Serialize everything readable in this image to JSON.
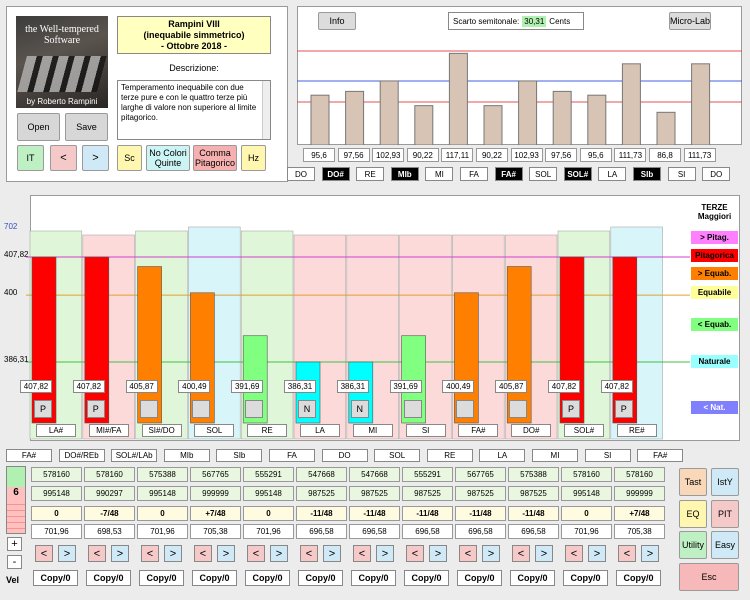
{
  "logo": {
    "line1": "the Well-tempered",
    "line2": "Software",
    "byline": "by Roberto Rampini"
  },
  "title": {
    "line1": "Rampini VIII",
    "line2": "(inequabile simmetrico)",
    "line3": "- Ottobre 2018 -"
  },
  "description": {
    "label": "Descrizione:",
    "text": "Temperamento inequabile con due terze pure e con le quattro terze più larghe di valore non superiore al limite pitagorico."
  },
  "buttons": {
    "open": "Open",
    "save": "Save",
    "it": "IT",
    "prev": "<",
    "next": ">",
    "sc": "Sc",
    "no_colori": "No Colori Quinte",
    "comma": "Comma Pitagorico",
    "hz": "Hz",
    "info": "Info",
    "microlab": "Micro-Lab"
  },
  "top_chart": {
    "scarto_label": "Scarto semitonale:",
    "scarto_value": "30,31",
    "scarto_unit": "Cents",
    "values": [
      "95,6",
      "97,56",
      "102,93",
      "90,22",
      "117,11",
      "90,22",
      "102,93",
      "97,56",
      "95,6",
      "111,73",
      "86,8",
      "111,73"
    ],
    "numeric": [
      95.6,
      97.56,
      102.93,
      90.22,
      117.11,
      90.22,
      102.93,
      97.56,
      95.6,
      111.73,
      86.8,
      111.73
    ],
    "notes": [
      {
        "n": "DO",
        "dark": false
      },
      {
        "n": "DO#",
        "dark": true
      },
      {
        "n": "RE",
        "dark": false
      },
      {
        "n": "MIb",
        "dark": true
      },
      {
        "n": "MI",
        "dark": false
      },
      {
        "n": "FA",
        "dark": false
      },
      {
        "n": "FA#",
        "dark": true
      },
      {
        "n": "SOL",
        "dark": false
      },
      {
        "n": "SOL#",
        "dark": true
      },
      {
        "n": "LA",
        "dark": false
      },
      {
        "n": "SIb",
        "dark": true
      },
      {
        "n": "SI",
        "dark": false
      },
      {
        "n": "DO",
        "dark": false
      }
    ]
  },
  "fifths_chart": {
    "y_labels": [
      "702",
      "407,82",
      "400",
      "386,31"
    ],
    "values": [
      "407,82",
      "407,82",
      "405,87",
      "400,49",
      "391,69",
      "386,31",
      "386,31",
      "391,69",
      "400,49",
      "405,87",
      "407,82",
      "407,82"
    ],
    "numeric": [
      407.82,
      407.82,
      405.87,
      400.49,
      391.69,
      386.31,
      386.31,
      391.69,
      400.49,
      405.87,
      407.82,
      407.82
    ],
    "bar_colors": [
      "#ff0000",
      "#ff0000",
      "#ff8000",
      "#ff8000",
      "#80ff80",
      "#00ffff",
      "#00ffff",
      "#80ff80",
      "#ff8000",
      "#ff8000",
      "#ff0000",
      "#ff0000"
    ],
    "bg_colors": [
      "#e0f6d8",
      "#fddada",
      "#e0f6d8",
      "#d8f6fa",
      "#e0f6d8",
      "#fddada",
      "#fddada",
      "#fddada",
      "#fddada",
      "#fddada",
      "#e0f6d8",
      "#d8f6fa"
    ],
    "bg_heights": [
      0.08,
      0.12,
      0.08,
      0.04,
      0.08,
      0.12,
      0.12,
      0.12,
      0.12,
      0.12,
      0.08,
      0.04
    ],
    "markers": [
      "P",
      "P",
      "",
      "",
      "",
      "N",
      "N",
      "",
      "",
      "",
      "P",
      "P"
    ],
    "notes": [
      "LA#",
      "MI#/FA",
      "SI#/DO",
      "SOL",
      "RE",
      "LA",
      "MI",
      "SI",
      "FA#",
      "DO#",
      "SOL#",
      "RE#"
    ]
  },
  "legend": [
    {
      "label": "TERZE Maggiori",
      "bg": "#ffffff",
      "color": "#000"
    },
    {
      "label": "> Pitag.",
      "bg": "#ff80ff",
      "color": "#000"
    },
    {
      "label": "Pitagorica",
      "bg": "#ff0000",
      "color": "#000"
    },
    {
      "label": "> Equab.",
      "bg": "#ff8000",
      "color": "#000"
    },
    {
      "label": "Equabile",
      "bg": "#ffff99",
      "color": "#000"
    },
    {
      "label": "< Equab.",
      "bg": "#80ff80",
      "color": "#000"
    },
    {
      "label": "Naturale",
      "bg": "#99ffff",
      "color": "#000"
    },
    {
      "label": "< Nat.",
      "bg": "#8080ff",
      "color": "#fff"
    }
  ],
  "bottom": {
    "notes": [
      "FA#",
      "DO#/REb",
      "SOL#/LAb",
      "MIb",
      "SIb",
      "FA",
      "DO",
      "SOL",
      "RE",
      "LA",
      "MI",
      "SI",
      "FA#"
    ],
    "row1": [
      "578160",
      "578160",
      "575388",
      "567765",
      "555291",
      "547668",
      "547668",
      "555291",
      "567765",
      "575388",
      "578160",
      "578160"
    ],
    "row2": [
      "995148",
      "990297",
      "995148",
      "999999",
      "995148",
      "987525",
      "987525",
      "987525",
      "987525",
      "987525",
      "995148",
      "999999"
    ],
    "row3": [
      "0",
      "-7/48",
      "0",
      "+7/48",
      "0",
      "-11/48",
      "-11/48",
      "-11/48",
      "-11/48",
      "-11/48",
      "0",
      "+7/48"
    ],
    "row4": [
      "701,96",
      "698,53",
      "701,96",
      "705,38",
      "701,96",
      "696,58",
      "696,58",
      "696,58",
      "696,58",
      "696,58",
      "701,96",
      "705,38"
    ],
    "copy": "Copy/0",
    "left_num": "6",
    "plus": "+",
    "minus": "-",
    "vel": "Vel"
  },
  "side_buttons": {
    "tast": "Tast",
    "isty": "IstY",
    "eq": "EQ",
    "pit": "PIT",
    "utility": "Utility",
    "easy": "Easy",
    "esc": "Esc"
  }
}
